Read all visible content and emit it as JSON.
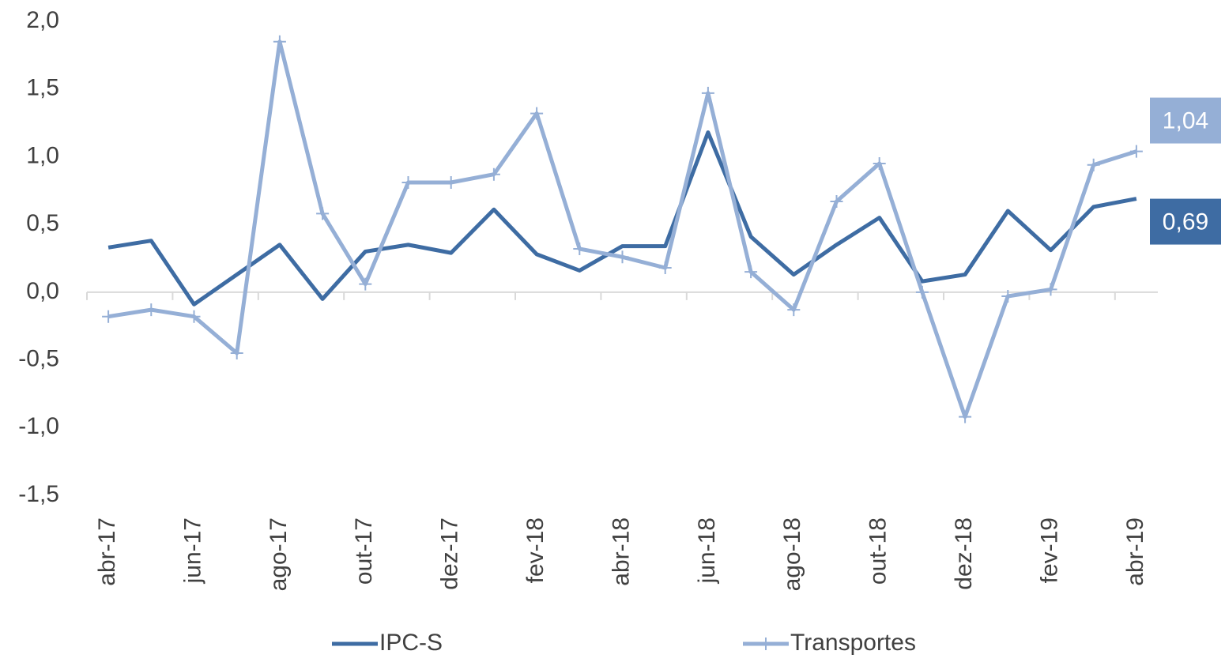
{
  "chart_data": {
    "type": "line",
    "categories": [
      "abr-17",
      null,
      "jun-17",
      null,
      "ago-17",
      null,
      "out-17",
      null,
      "dez-17",
      null,
      "fev-18",
      null,
      "abr-18",
      null,
      "jun-18",
      null,
      "ago-18",
      null,
      "out-18",
      null,
      "dez-18",
      null,
      "fev-19",
      null,
      "abr-19"
    ],
    "series": [
      {
        "name": "IPC-S",
        "color": "#3e6ca3",
        "marker": false,
        "values": [
          0.33,
          0.38,
          -0.09,
          0.13,
          0.35,
          -0.05,
          0.3,
          0.35,
          0.29,
          0.61,
          0.28,
          0.16,
          0.34,
          0.34,
          1.18,
          0.41,
          0.13,
          0.35,
          0.55,
          0.08,
          0.13,
          0.6,
          0.31,
          0.63,
          0.69
        ],
        "value_labels": [
          null,
          null,
          null,
          null,
          null,
          null,
          null,
          null,
          null,
          null,
          null,
          null,
          null,
          null,
          null,
          null,
          null,
          null,
          null,
          null,
          null,
          null,
          null,
          null,
          "0,69"
        ]
      },
      {
        "name": "Transportes",
        "color": "#95afd6",
        "marker": true,
        "values": [
          -0.18,
          -0.13,
          -0.18,
          -0.45,
          1.85,
          0.58,
          0.06,
          0.81,
          0.81,
          0.87,
          1.32,
          0.32,
          0.26,
          0.18,
          1.47,
          0.15,
          -0.13,
          0.67,
          0.95,
          0.0,
          -0.92,
          -0.03,
          0.02,
          0.94,
          1.04
        ],
        "value_labels": [
          null,
          null,
          null,
          null,
          null,
          null,
          null,
          null,
          null,
          null,
          null,
          null,
          null,
          null,
          null,
          null,
          null,
          null,
          null,
          null,
          null,
          null,
          null,
          null,
          "1,04"
        ]
      }
    ],
    "ylim": [
      -1.5,
      2.0
    ],
    "yticks": [
      {
        "value": -1.5,
        "label": "-1,5"
      },
      {
        "value": -1.0,
        "label": "-1,0"
      },
      {
        "value": -0.5,
        "label": "-0,5"
      },
      {
        "value": 0.0,
        "label": "0,0"
      },
      {
        "value": 0.5,
        "label": "0,5"
      },
      {
        "value": 1.0,
        "label": "1,0"
      },
      {
        "value": 1.5,
        "label": "1,5"
      },
      {
        "value": 2.0,
        "label": "2,0"
      }
    ],
    "grid": false,
    "legend": "bottom"
  }
}
